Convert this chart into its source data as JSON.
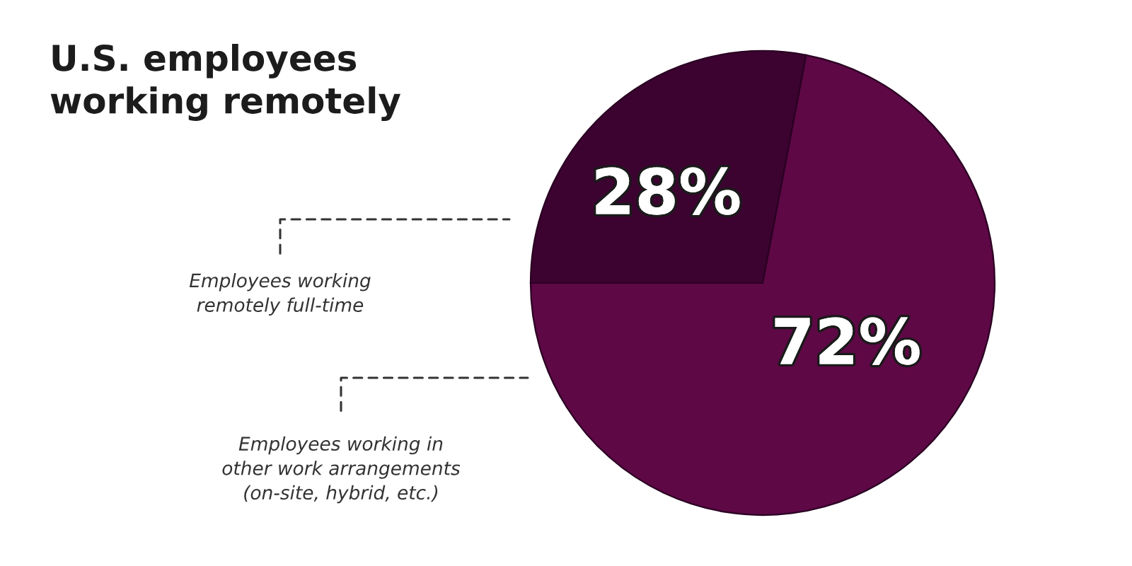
{
  "chart_data": {
    "type": "pie",
    "title": "U.S. employees\nworking remotely",
    "categories": [
      "Employees working\nremotely full-time",
      "Employees working in\nother work arrangements\n(on-site, hybrid, etc.)"
    ],
    "values": [
      28,
      72
    ],
    "colors": [
      "#3c0331",
      "#5e0846"
    ],
    "value_labels": [
      "28%",
      "72%"
    ]
  }
}
